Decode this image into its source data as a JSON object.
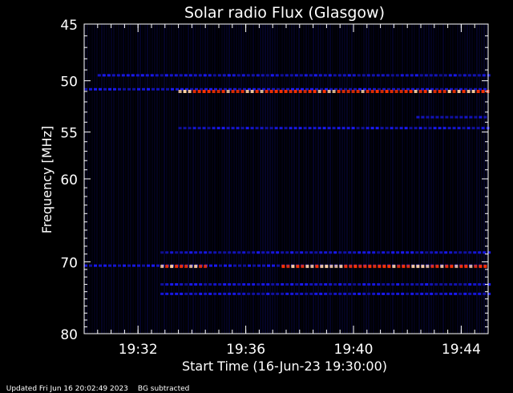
{
  "chart_data": {
    "type": "heatmap",
    "title": "Solar radio Flux (Glasgow)",
    "xlabel": "Start Time (16-Jun-23 19:30:00)",
    "ylabel": "Frequency [MHz]",
    "x_ticks": [
      "19:32",
      "19:36",
      "19:40",
      "19:44"
    ],
    "y_ticks": [
      "45",
      "50",
      "55",
      "60",
      "70",
      "80"
    ],
    "xlim": [
      "19:30:00",
      "19:45:00"
    ],
    "ylim": [
      45,
      80
    ],
    "y_scale": "log",
    "colors": {
      "background": "#000000",
      "low": "#1a1aff",
      "mid": "#ff3300",
      "high": "#ffd0a0",
      "axis": "#ffffff"
    },
    "bands": [
      {
        "freq": 49.5,
        "start": "19:30:30",
        "end": "19:45:00",
        "level": "low"
      },
      {
        "freq": 50.8,
        "start": "19:30:00",
        "end": "19:45:00",
        "level": "low"
      },
      {
        "freq": 51.0,
        "start": "19:33:30",
        "end": "19:45:00",
        "level": "mid"
      },
      {
        "freq": 53.5,
        "start": "19:42:20",
        "end": "19:45:00",
        "level": "low"
      },
      {
        "freq": 54.6,
        "start": "19:33:30",
        "end": "19:45:00",
        "level": "low"
      },
      {
        "freq": 68.8,
        "start": "19:32:50",
        "end": "19:45:00",
        "level": "low"
      },
      {
        "freq": 70.5,
        "start": "19:30:00",
        "end": "19:45:00",
        "level": "low"
      },
      {
        "freq": 70.6,
        "start": "19:32:50",
        "end": "19:34:30",
        "level": "mid"
      },
      {
        "freq": 70.6,
        "start": "19:37:20",
        "end": "19:45:00",
        "level": "mid"
      },
      {
        "freq": 73.0,
        "start": "19:32:50",
        "end": "19:45:00",
        "level": "low"
      },
      {
        "freq": 74.3,
        "start": "19:32:50",
        "end": "19:45:00",
        "level": "low"
      }
    ]
  },
  "footer": {
    "updated": "Updated Fri Jun 16 20:02:49 2023",
    "note": "BG subtracted"
  }
}
